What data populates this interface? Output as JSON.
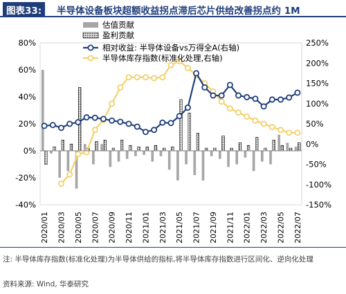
{
  "header": {
    "figure_label": "图表33:",
    "title": "半导体设备板块超额收益拐点滞后芯片供给改善拐点约 1M"
  },
  "chart_data": {
    "type": "bar",
    "x": [
      "2020/01",
      "2020/02",
      "2020/03",
      "2020/04",
      "2020/05",
      "2020/06",
      "2020/07",
      "2020/08",
      "2020/09",
      "2020/10",
      "2020/11",
      "2020/12",
      "2021/01",
      "2021/02",
      "2021/03",
      "2021/04",
      "2021/05",
      "2021/06",
      "2021/07",
      "2021/08",
      "2021/09",
      "2021/10",
      "2021/11",
      "2021/12",
      "2022/01",
      "2022/02",
      "2022/03",
      "2022/04",
      "2022/05",
      "2022/06",
      "2022/07"
    ],
    "x_tick_labels": [
      "2020/01",
      "2020/03",
      "2020/05",
      "2020/07",
      "2020/09",
      "2020/11",
      "2021/01",
      "2021/03",
      "2021/05",
      "2021/07",
      "2021/09",
      "2021/11",
      "2022/01",
      "2022/03",
      "2022/05",
      "2022/07"
    ],
    "left_axis": {
      "ticks": [
        "-40%",
        "-20%",
        "0%",
        "20%",
        "40%",
        "60%",
        "80%"
      ],
      "range": [
        -40,
        80
      ]
    },
    "right_axis": {
      "ticks": [
        "-150%",
        "-100%",
        "-50%",
        "0%",
        "50%",
        "100%",
        "150%",
        "200%",
        "250%"
      ],
      "range": [
        -150,
        250
      ]
    },
    "series": [
      {
        "name": "估值贡献",
        "type": "bar",
        "axis": "left",
        "color": "#a6a6a6",
        "values": [
          60,
          -2,
          -20,
          -15,
          -28,
          5,
          -10,
          5,
          -12,
          -8,
          -6,
          -4,
          -3,
          -8,
          -4,
          -14,
          -22,
          -10,
          -18,
          -22,
          -4,
          -6,
          -12,
          -10,
          -5,
          -15,
          -8,
          -10,
          12,
          6,
          3
        ]
      },
      {
        "name": "盈利贡献",
        "type": "bar_pattern",
        "axis": "left",
        "color": "#000000",
        "values": [
          -10,
          3,
          8,
          5,
          47,
          2,
          7,
          8,
          2,
          8,
          4,
          3,
          3,
          4,
          2,
          3,
          38,
          28,
          13,
          2,
          2,
          11,
          2,
          6,
          4,
          10,
          2,
          8,
          4,
          2,
          6
        ]
      },
      {
        "name": "相对收益: 半导体设备vs万得全A(右轴)",
        "type": "line",
        "axis": "right",
        "color": "#1f3d7a",
        "marker": "circle",
        "values": [
          45,
          47,
          40,
          50,
          54,
          66,
          65,
          62,
          58,
          55,
          50,
          43,
          30,
          35,
          53,
          52,
          69,
          90,
          175,
          140,
          120,
          120,
          146,
          120,
          116,
          112,
          93,
          110,
          110,
          115,
          127
        ]
      },
      {
        "name": "半导体库存指数(标准化处理,右轴)",
        "type": "line",
        "axis": "right",
        "color": "#f2d16b",
        "marker": "circle",
        "values": [
          null,
          null,
          -98,
          -75,
          -25,
          -20,
          35,
          60,
          100,
          140,
          165,
          165,
          165,
          163,
          165,
          195,
          205,
          188,
          170,
          150,
          130,
          105,
          88,
          78,
          68,
          58,
          50,
          42,
          35,
          28,
          28
        ]
      }
    ]
  },
  "footer": {
    "note": "注: 半导体库存指数(标准化处理)为半导体供给的指标,将半导体库存指数进行区间化、逆向化处理",
    "source": "资料来源: Wind, 华泰研究"
  }
}
